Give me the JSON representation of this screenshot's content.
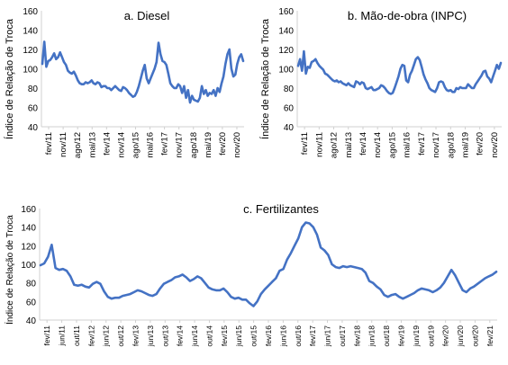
{
  "chart_data": [
    {
      "type": "line",
      "title": "a. Diesel",
      "ylabel": "Índice de Relação de Troca",
      "ylim": [
        40,
        160
      ],
      "yticks": [
        40,
        60,
        80,
        100,
        120,
        140,
        160
      ],
      "grid": false,
      "color": "#4472C4",
      "xticks": [
        "fev/11",
        "nov/11",
        "ago/12",
        "mai/13",
        "fev/14",
        "nov/14",
        "ago/15",
        "mai/16",
        "fev/17",
        "nov/17",
        "ago/18",
        "mai/19",
        "fev/20",
        "nov/20"
      ],
      "series": [
        {
          "values": [
            105,
            128,
            102,
            108,
            109,
            112,
            116,
            110,
            112,
            117,
            112,
            107,
            104,
            98,
            96,
            95,
            97,
            93,
            88,
            85,
            84,
            84,
            86,
            85,
            86,
            88,
            85,
            84,
            86,
            85,
            81,
            82,
            82,
            80,
            80,
            78,
            80,
            82,
            80,
            78,
            77,
            81,
            80,
            78,
            75,
            73,
            71,
            72,
            76,
            82,
            90,
            98,
            104,
            90,
            85,
            90,
            95,
            100,
            107,
            127,
            115,
            108,
            107,
            104,
            95,
            85,
            82,
            80,
            80,
            84,
            82,
            75,
            82,
            70,
            78,
            65,
            72,
            68,
            67,
            66,
            70,
            82,
            74,
            78,
            72,
            75,
            74,
            78,
            72,
            80,
            76,
            85,
            92,
            105,
            115,
            120,
            100,
            92,
            94,
            105,
            112,
            115,
            108
          ]
        }
      ]
    },
    {
      "type": "line",
      "title": "b. Mão-de-obra (INPC)",
      "ylabel": "Índice de Relação de Troca",
      "ylim": [
        40,
        160
      ],
      "yticks": [
        40,
        60,
        80,
        100,
        120,
        140,
        160
      ],
      "grid": false,
      "color": "#4472C4",
      "xticks": [
        "fev/11",
        "nov/11",
        "ago/12",
        "mai/13",
        "fev/14",
        "nov/14",
        "ago/15",
        "mai/16",
        "fev/17",
        "nov/17",
        "ago/18",
        "mai/19",
        "fev/20",
        "nov/20"
      ],
      "series": [
        {
          "values": [
            103,
            110,
            98,
            118,
            95,
            102,
            101,
            107,
            108,
            110,
            106,
            103,
            101,
            99,
            95,
            94,
            92,
            90,
            88,
            87,
            88,
            86,
            87,
            85,
            84,
            83,
            85,
            83,
            82,
            81,
            87,
            86,
            84,
            86,
            85,
            80,
            79,
            80,
            81,
            78,
            78,
            79,
            80,
            83,
            82,
            80,
            77,
            75,
            74,
            75,
            80,
            86,
            92,
            100,
            104,
            103,
            88,
            86,
            94,
            98,
            104,
            110,
            112,
            109,
            102,
            94,
            89,
            85,
            80,
            78,
            77,
            76,
            80,
            86,
            87,
            86,
            81,
            78,
            77,
            78,
            76,
            76,
            80,
            79,
            81,
            80,
            80,
            80,
            84,
            82,
            80,
            80,
            84,
            87,
            90,
            93,
            97,
            98,
            92,
            90,
            86,
            92,
            98,
            104,
            100,
            106
          ]
        }
      ]
    },
    {
      "type": "line",
      "title": "c. Fertilizantes",
      "ylabel": "Índice de Relação de Troca",
      "ylim": [
        40,
        160
      ],
      "yticks": [
        40,
        60,
        80,
        100,
        120,
        140,
        160
      ],
      "grid": false,
      "color": "#4472C4",
      "xticks": [
        "fev/11",
        "jun/11",
        "out/11",
        "fev/12",
        "jun/12",
        "out/12",
        "fev/13",
        "jun/13",
        "out/13",
        "fev/14",
        "jun/14",
        "out/14",
        "fev/15",
        "jun/15",
        "out/15",
        "fev/16",
        "jun/16",
        "out/16",
        "fev/17",
        "jun/17",
        "out/17",
        "fev/18",
        "jun/18",
        "out/18",
        "fev/19",
        "jun/19",
        "out/19",
        "fev/20",
        "jun/20",
        "out/20",
        "fev/21"
      ],
      "series": [
        {
          "values": [
            99,
            101,
            108,
            121,
            96,
            94,
            95,
            93,
            87,
            78,
            77,
            78,
            76,
            75,
            79,
            81,
            79,
            71,
            65,
            63,
            64,
            64,
            66,
            67,
            68,
            70,
            72,
            71,
            69,
            67,
            66,
            68,
            74,
            79,
            81,
            83,
            86,
            87,
            89,
            86,
            82,
            84,
            87,
            85,
            80,
            75,
            73,
            72,
            72,
            74,
            70,
            65,
            63,
            64,
            62,
            62,
            58,
            55,
            60,
            68,
            73,
            77,
            81,
            85,
            93,
            95,
            105,
            112,
            120,
            128,
            140,
            145,
            144,
            140,
            132,
            118,
            115,
            110,
            100,
            97,
            96,
            98,
            97,
            98,
            97,
            96,
            95,
            91,
            82,
            80,
            76,
            73,
            67,
            65,
            67,
            68,
            65,
            63,
            65,
            67,
            69,
            72,
            74,
            73,
            72,
            70,
            72,
            75,
            80,
            87,
            94,
            88,
            80,
            72,
            70,
            74,
            76,
            79,
            82,
            85,
            87,
            89,
            92
          ]
        }
      ]
    }
  ]
}
